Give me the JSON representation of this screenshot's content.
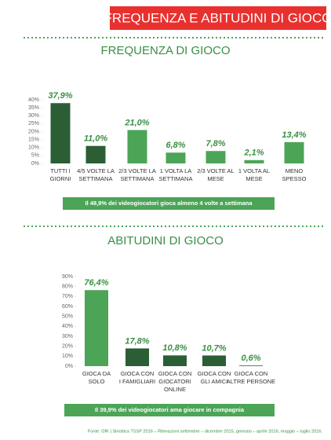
{
  "header": {
    "title": "FREQUENZA E ABITUDINI DI GIOCO"
  },
  "chart_data": [
    {
      "type": "bar",
      "title": "FREQUENZA DI GIOCO",
      "categories": [
        [
          "TUTTI I",
          "GIORNI"
        ],
        [
          "4/5 VOLTE LA",
          "SETTIMANA"
        ],
        [
          "2/3 VOLTE LA",
          "SETTIMANA"
        ],
        [
          "1 VOLTA LA",
          "SETTIMANA"
        ],
        [
          "2/3 VOLTE AL",
          "MESE"
        ],
        [
          "1 VOLTA AL",
          "MESE"
        ],
        [
          "MENO",
          "SPESSO"
        ]
      ],
      "values": [
        37.9,
        11.0,
        21.0,
        6.8,
        7.8,
        2.1,
        13.4
      ],
      "value_labels": [
        "37,9%",
        "11,0%",
        "21,0%",
        "6,8%",
        "7,8%",
        "2,1%",
        "13,4%"
      ],
      "colors": [
        "#2b5e35",
        "#2b5e35",
        "#4ca557",
        "#4ca557",
        "#4ca557",
        "#4ca557",
        "#4ca557"
      ],
      "ylim": [
        0,
        40
      ],
      "yticks": [
        {
          "value": 0,
          "label": "0%"
        },
        {
          "value": 5,
          "label": "5%"
        },
        {
          "value": 10,
          "label": "10%"
        },
        {
          "value": 15,
          "label": "15%"
        },
        {
          "value": 20,
          "label": "20%"
        },
        {
          "value": 25,
          "label": "25%"
        },
        {
          "value": 30,
          "label": "30%"
        },
        {
          "value": 35,
          "label": "35%"
        },
        {
          "value": 40,
          "label": "40%"
        }
      ],
      "note": "Il 48,9% dei videogiocatori gioca almeno 4 volte a settimana"
    },
    {
      "type": "bar",
      "title": "ABITUDINI DI GIOCO",
      "categories": [
        [
          "GIOCA DA",
          "SOLO"
        ],
        [
          "GIOCA CON",
          "I FAMIGLIARI"
        ],
        [
          "GIOCA CON",
          "GIOCATORI",
          "ONLINE"
        ],
        [
          "GIOCA CON",
          "GLI AMICI"
        ],
        [
          "GIOCA CON",
          "ALTRE PERSONE"
        ]
      ],
      "values": [
        76.4,
        17.8,
        10.8,
        10.7,
        0.6
      ],
      "value_labels": [
        "76,4%",
        "17,8%",
        "10,8%",
        "10,7%",
        "0,6%"
      ],
      "colors": [
        "#4ca557",
        "#2b5e35",
        "#2b5e35",
        "#2b5e35",
        "#2b5e35"
      ],
      "ylim": [
        0,
        90
      ],
      "yticks": [
        {
          "value": 0,
          "label": "0%"
        },
        {
          "value": 10,
          "label": "10%"
        },
        {
          "value": 20,
          "label": "20%"
        },
        {
          "value": 30,
          "label": "30%"
        },
        {
          "value": 40,
          "label": "40%"
        },
        {
          "value": 50,
          "label": "50%"
        },
        {
          "value": 60,
          "label": "60%"
        },
        {
          "value": 70,
          "label": "70%"
        },
        {
          "value": 80,
          "label": "80%"
        },
        {
          "value": 90,
          "label": "90%"
        }
      ],
      "note": "Il 39,9% dei videogiocatori ama giocare in compagnia"
    }
  ],
  "source": "Fonte: GfK | Sinottica TSSP 2016 – Rilevazioni settembre – dicembre 2015, gennaio – aprile 2016, maggio – luglio 2016."
}
